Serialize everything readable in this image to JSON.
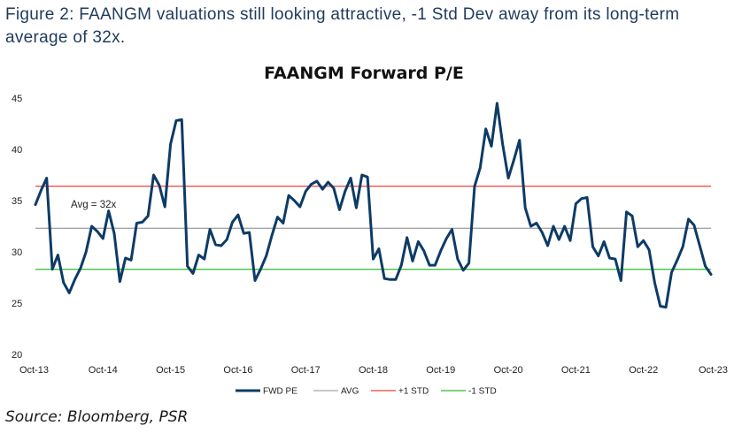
{
  "caption": "Figure 2: FAANGM valuations still looking attractive, -1 Std Dev away from its long-term average of 32x.",
  "source": "Source: Bloomberg, PSR",
  "colors": {
    "caption": "#1f3b5c",
    "fwd_pe": "#0d3b66",
    "avg": "#a6a6a6",
    "plus1": "#e8413a",
    "minus1": "#2eb82e"
  },
  "chart_data": {
    "type": "line",
    "title": "FAANGM Forward P/E",
    "xlabel": "",
    "ylabel": "",
    "ylim": [
      20,
      45
    ],
    "yticks": [
      20,
      25,
      30,
      35,
      40,
      45
    ],
    "x_ticks": [
      "Oct-13",
      "Oct-14",
      "Oct-15",
      "Oct-16",
      "Oct-17",
      "Oct-18",
      "Oct-19",
      "Oct-20",
      "Oct-21",
      "Oct-22",
      "Oct-23"
    ],
    "x_range_months": [
      0,
      120
    ],
    "grid": false,
    "legend_position": "bottom",
    "annotation": "Avg = 32x",
    "series": [
      {
        "name": "FWD PE",
        "type": "line",
        "points": [
          [
            0,
            34.6
          ],
          [
            1,
            36.0
          ],
          [
            2,
            37.2
          ],
          [
            3,
            28.3
          ],
          [
            4,
            29.7
          ],
          [
            5,
            27.0
          ],
          [
            6,
            26.0
          ],
          [
            7,
            27.3
          ],
          [
            8,
            28.4
          ],
          [
            9,
            30.0
          ],
          [
            10,
            32.5
          ],
          [
            11,
            32.0
          ],
          [
            12,
            31.3
          ],
          [
            13,
            34.0
          ],
          [
            14,
            31.8
          ],
          [
            15,
            27.1
          ],
          [
            16,
            29.4
          ],
          [
            17,
            29.2
          ],
          [
            18,
            32.8
          ],
          [
            19,
            32.9
          ],
          [
            20,
            33.5
          ],
          [
            21,
            37.5
          ],
          [
            22,
            36.5
          ],
          [
            23,
            34.4
          ],
          [
            24,
            40.5
          ],
          [
            25,
            42.8
          ],
          [
            26,
            42.9
          ],
          [
            27,
            28.6
          ],
          [
            28,
            27.9
          ],
          [
            29,
            29.7
          ],
          [
            30,
            29.3
          ],
          [
            31,
            32.2
          ],
          [
            32,
            30.7
          ],
          [
            33,
            30.6
          ],
          [
            34,
            31.2
          ],
          [
            35,
            32.9
          ],
          [
            36,
            33.6
          ],
          [
            37,
            31.8
          ],
          [
            38,
            31.9
          ],
          [
            39,
            27.2
          ],
          [
            40,
            28.3
          ],
          [
            41,
            29.6
          ],
          [
            42,
            31.6
          ],
          [
            43,
            33.4
          ],
          [
            44,
            32.8
          ],
          [
            45,
            35.5
          ],
          [
            46,
            35.0
          ],
          [
            47,
            34.4
          ],
          [
            48,
            35.9
          ],
          [
            49,
            36.6
          ],
          [
            50,
            36.9
          ],
          [
            51,
            36.1
          ],
          [
            52,
            36.8
          ],
          [
            53,
            36.2
          ],
          [
            54,
            34.1
          ],
          [
            55,
            35.9
          ],
          [
            56,
            37.2
          ],
          [
            57,
            34.3
          ],
          [
            58,
            37.5
          ],
          [
            59,
            37.3
          ],
          [
            60,
            29.3
          ],
          [
            61,
            30.3
          ],
          [
            62,
            27.4
          ],
          [
            63,
            27.3
          ],
          [
            64,
            27.3
          ],
          [
            65,
            28.7
          ],
          [
            66,
            31.4
          ],
          [
            67,
            29.1
          ],
          [
            68,
            31.0
          ],
          [
            69,
            30.1
          ],
          [
            70,
            28.7
          ],
          [
            71,
            28.7
          ],
          [
            72,
            30.1
          ],
          [
            73,
            31.3
          ],
          [
            74,
            32.2
          ],
          [
            75,
            29.3
          ],
          [
            76,
            28.2
          ],
          [
            77,
            28.9
          ],
          [
            78,
            36.4
          ],
          [
            79,
            38.2
          ],
          [
            80,
            42.0
          ],
          [
            81,
            40.3
          ],
          [
            82,
            44.5
          ],
          [
            83,
            40.5
          ],
          [
            84,
            37.2
          ],
          [
            85,
            39.0
          ],
          [
            86,
            40.9
          ],
          [
            87,
            34.3
          ],
          [
            88,
            32.5
          ],
          [
            89,
            32.8
          ],
          [
            90,
            31.9
          ],
          [
            91,
            30.6
          ],
          [
            92,
            32.5
          ],
          [
            93,
            31.2
          ],
          [
            94,
            32.5
          ],
          [
            95,
            31.1
          ],
          [
            96,
            34.7
          ],
          [
            97,
            35.2
          ],
          [
            98,
            35.3
          ],
          [
            99,
            30.5
          ],
          [
            100,
            29.6
          ],
          [
            101,
            31.0
          ],
          [
            102,
            29.4
          ],
          [
            103,
            29.3
          ],
          [
            104,
            27.2
          ],
          [
            105,
            33.9
          ],
          [
            106,
            33.5
          ],
          [
            107,
            30.5
          ],
          [
            108,
            31.1
          ],
          [
            109,
            30.2
          ],
          [
            110,
            27.0
          ],
          [
            111,
            24.7
          ],
          [
            112,
            24.6
          ],
          [
            113,
            28.0
          ],
          [
            114,
            29.2
          ],
          [
            115,
            30.5
          ],
          [
            116,
            33.2
          ],
          [
            117,
            32.6
          ],
          [
            118,
            30.6
          ],
          [
            119,
            28.6
          ],
          [
            120,
            27.8
          ]
        ]
      },
      {
        "name": "AVG",
        "type": "hline",
        "value": 32.3
      },
      {
        "name": "+1 STD",
        "type": "hline",
        "value": 36.4
      },
      {
        "name": "-1 STD",
        "type": "hline",
        "value": 28.3
      }
    ]
  }
}
